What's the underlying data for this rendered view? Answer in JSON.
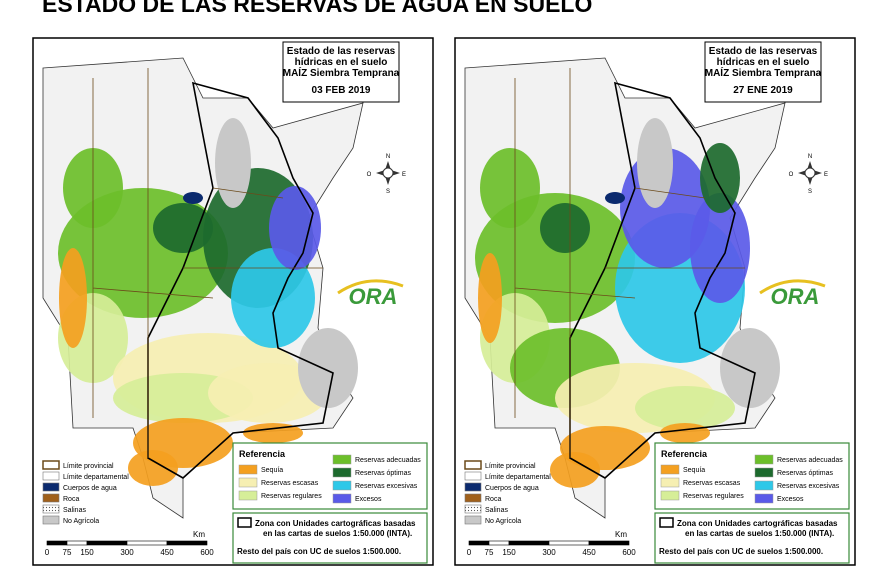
{
  "title": "ESTADO DE LAS RESERVAS DE AGUA EN SUELO",
  "panels": [
    {
      "map_title": [
        "Estado de las reservas",
        "hídricas en el suelo",
        "MAÍZ Siembra Temprana"
      ],
      "date": "03 FEB 2019",
      "logo": "ORA",
      "compass": [
        "N",
        "S",
        "E",
        "O"
      ],
      "map_legend": [
        {
          "label": "Límite provincial",
          "color": "#ffffff"
        },
        {
          "label": "Límite departamental",
          "color": "#ffffff"
        },
        {
          "label": "Cuerpos de agua",
          "color": "#0b2a6e"
        },
        {
          "label": "Roca",
          "color": "#a0601a"
        },
        {
          "label": "Salinas",
          "color": "#ffffff"
        },
        {
          "label": "No Agrícola",
          "color": "#c8c8c8"
        }
      ],
      "legend": {
        "heading": "Referencia",
        "items": [
          {
            "label": "Sequía",
            "color": "#f4a020"
          },
          {
            "label": "Reservas escasas",
            "color": "#f6efb2"
          },
          {
            "label": "Reservas regulares",
            "color": "#d6ee98"
          },
          {
            "label": "Reservas adecuadas",
            "color": "#6cbf2a"
          },
          {
            "label": "Reservas óptimas",
            "color": "#1d6a2e"
          },
          {
            "label": "Reservas excesivas",
            "color": "#2ec8e8"
          },
          {
            "label": "Excesos",
            "color": "#5a5ae8"
          }
        ]
      },
      "zone_note": [
        "Zona con Unidades cartográficas basadas",
        "en las cartas de suelos 1:50.000 (INTA)."
      ],
      "rest_note": "Resto del país con UC de suelos 1:500.000.",
      "scale": {
        "unit": "Km",
        "ticks": [
          0,
          75,
          150,
          300,
          450,
          600
        ]
      }
    },
    {
      "map_title": [
        "Estado de las reservas",
        "hídricas en el suelo",
        "MAÍZ Siembra Temprana"
      ],
      "date": "27 ENE 2019",
      "logo": "ORA",
      "compass": [
        "N",
        "S",
        "E",
        "O"
      ],
      "map_legend": [
        {
          "label": "Límite provincial",
          "color": "#ffffff"
        },
        {
          "label": "Límite departamental",
          "color": "#ffffff"
        },
        {
          "label": "Cuerpos de agua",
          "color": "#0b2a6e"
        },
        {
          "label": "Roca",
          "color": "#a0601a"
        },
        {
          "label": "Salinas",
          "color": "#ffffff"
        },
        {
          "label": "No Agrícola",
          "color": "#c8c8c8"
        }
      ],
      "legend": {
        "heading": "Referencia",
        "items": [
          {
            "label": "Sequía",
            "color": "#f4a020"
          },
          {
            "label": "Reservas escasas",
            "color": "#f6efb2"
          },
          {
            "label": "Reservas regulares",
            "color": "#d6ee98"
          },
          {
            "label": "Reservas adecuadas",
            "color": "#6cbf2a"
          },
          {
            "label": "Reservas óptimas",
            "color": "#1d6a2e"
          },
          {
            "label": "Reservas excesivas",
            "color": "#2ec8e8"
          },
          {
            "label": "Excesos",
            "color": "#5a5ae8"
          }
        ]
      },
      "zone_note": [
        "Zona con Unidades cartográficas basadas",
        "en las cartas de suelos 1:50.000 (INTA)."
      ],
      "rest_note": "Resto del país con UC de suelos 1:500.000.",
      "scale": {
        "unit": "Km",
        "ticks": [
          0,
          75,
          150,
          300,
          450,
          600
        ]
      }
    }
  ]
}
